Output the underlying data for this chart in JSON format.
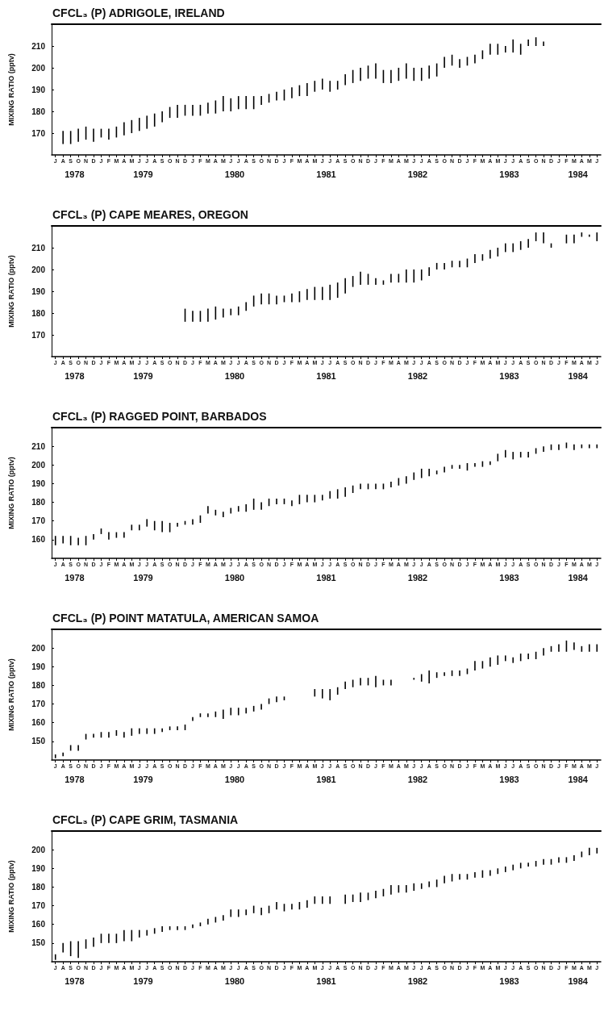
{
  "chart_data": [
    {
      "type": "bar",
      "title": "CFCL₃ (P) ADRIGOLE, IRELAND",
      "ylabel": "MIXING RATIO (pptv)",
      "color": "#000000",
      "categories": [
        "J",
        "A",
        "S",
        "O",
        "N",
        "D",
        "J",
        "F",
        "M",
        "A",
        "M",
        "J",
        "J",
        "A",
        "S",
        "O",
        "N",
        "D",
        "J",
        "F",
        "M",
        "A",
        "M",
        "J",
        "J",
        "A",
        "S",
        "O",
        "N",
        "D",
        "J",
        "F",
        "M",
        "A",
        "M",
        "J",
        "J",
        "A",
        "S",
        "O",
        "N",
        "D",
        "J",
        "F",
        "M",
        "A",
        "M",
        "J",
        "J",
        "A",
        "S",
        "O",
        "N",
        "D",
        "J",
        "F",
        "M",
        "A",
        "M",
        "J",
        "J",
        "A",
        "S",
        "O",
        "N",
        "D",
        "J",
        "F",
        "M",
        "A",
        "M",
        "J"
      ],
      "base": [
        null,
        165,
        165,
        166,
        167,
        166,
        168,
        167,
        168,
        169,
        170,
        171,
        172,
        173,
        175,
        177,
        177,
        178,
        178,
        178,
        179,
        179,
        180,
        180,
        181,
        181,
        181,
        183,
        184,
        185,
        185,
        186,
        187,
        187,
        189,
        190,
        189,
        190,
        192,
        193,
        194,
        195,
        195,
        193,
        193,
        194,
        195,
        194,
        194,
        195,
        196,
        200,
        201,
        200,
        201,
        202,
        204,
        206,
        206,
        207,
        207,
        206,
        210,
        210,
        210,
        null,
        null,
        null,
        null,
        null,
        null,
        null
      ],
      "values": [
        null,
        6,
        6,
        6,
        6,
        6,
        4,
        5,
        5,
        6,
        6,
        6,
        6,
        6,
        5,
        5,
        6,
        5,
        5,
        5,
        5,
        6,
        7,
        6,
        6,
        6,
        6,
        4,
        4,
        4,
        5,
        5,
        5,
        6,
        5,
        5,
        5,
        4,
        5,
        6,
        6,
        6,
        7,
        6,
        6,
        6,
        7,
        6,
        6,
        6,
        6,
        5,
        5,
        4,
        4,
        4,
        4,
        5,
        5,
        3,
        6,
        5,
        3,
        4,
        2,
        null,
        null,
        null,
        null,
        null,
        null,
        null
      ],
      "ylim": [
        160,
        220
      ],
      "yticks": [
        170,
        180,
        190,
        200,
        210
      ],
      "annotations": [
        "1978",
        "1979",
        "1980",
        "1981",
        "1982",
        "1983",
        "1984"
      ]
    },
    {
      "type": "bar",
      "title": "CFCL₃ (P) CAPE MEARES, OREGON",
      "ylabel": "MIXING RATIO (pptv)",
      "color": "#000000",
      "categories": [
        "J",
        "A",
        "S",
        "O",
        "N",
        "D",
        "J",
        "F",
        "M",
        "A",
        "M",
        "J",
        "J",
        "A",
        "S",
        "O",
        "N",
        "D",
        "J",
        "F",
        "M",
        "A",
        "M",
        "J",
        "J",
        "A",
        "S",
        "O",
        "N",
        "D",
        "J",
        "F",
        "M",
        "A",
        "M",
        "J",
        "J",
        "A",
        "S",
        "O",
        "N",
        "D",
        "J",
        "F",
        "M",
        "A",
        "M",
        "J",
        "J",
        "A",
        "S",
        "O",
        "N",
        "D",
        "J",
        "F",
        "M",
        "A",
        "M",
        "J",
        "J",
        "A",
        "S",
        "O",
        "N",
        "D",
        "J",
        "F",
        "M",
        "A",
        "M",
        "J"
      ],
      "base": [
        null,
        null,
        null,
        null,
        null,
        null,
        null,
        null,
        null,
        null,
        null,
        null,
        null,
        null,
        null,
        null,
        null,
        176,
        176,
        176,
        176,
        177,
        178,
        179,
        179,
        181,
        183,
        184,
        184,
        184,
        185,
        185,
        185,
        186,
        186,
        186,
        186,
        187,
        189,
        192,
        193,
        193,
        193,
        193,
        194,
        194,
        194,
        194,
        195,
        197,
        200,
        200,
        201,
        201,
        201,
        203,
        204,
        205,
        206,
        208,
        208,
        209,
        210,
        213,
        212,
        210,
        null,
        212,
        212,
        215,
        215,
        213
      ],
      "values": [
        null,
        null,
        null,
        null,
        null,
        null,
        null,
        null,
        null,
        null,
        null,
        null,
        null,
        null,
        null,
        null,
        null,
        6,
        5,
        5,
        6,
        6,
        4,
        3,
        4,
        4,
        5,
        5,
        5,
        4,
        3,
        4,
        5,
        5,
        6,
        6,
        7,
        7,
        7,
        5,
        6,
        5,
        3,
        2,
        4,
        4,
        6,
        6,
        5,
        4,
        3,
        3,
        3,
        3,
        4,
        4,
        3,
        4,
        4,
        4,
        4,
        4,
        4,
        4,
        5,
        2,
        null,
        4,
        4,
        2,
        1,
        4
      ],
      "ylim": [
        160,
        220
      ],
      "yticks": [
        170,
        180,
        190,
        200,
        210
      ],
      "annotations": [
        "1978",
        "1979",
        "1980",
        "1981",
        "1982",
        "1983",
        "1984"
      ]
    },
    {
      "type": "bar",
      "title": "CFCL₃ (P) RAGGED POINT, BARBADOS",
      "ylabel": "MIXING RATIO (pptv)",
      "color": "#000000",
      "categories": [
        "J",
        "A",
        "S",
        "O",
        "N",
        "D",
        "J",
        "F",
        "M",
        "A",
        "M",
        "J",
        "J",
        "A",
        "S",
        "O",
        "N",
        "D",
        "J",
        "F",
        "M",
        "A",
        "M",
        "J",
        "J",
        "A",
        "S",
        "O",
        "N",
        "D",
        "J",
        "F",
        "M",
        "A",
        "M",
        "J",
        "J",
        "A",
        "S",
        "O",
        "N",
        "D",
        "J",
        "F",
        "M",
        "A",
        "M",
        "J",
        "J",
        "A",
        "S",
        "O",
        "N",
        "D",
        "J",
        "F",
        "M",
        "A",
        "M",
        "J",
        "J",
        "A",
        "S",
        "O",
        "N",
        "D",
        "J",
        "F",
        "M",
        "A",
        "M",
        "J"
      ],
      "base": [
        157,
        158,
        157,
        157,
        157,
        160,
        163,
        160,
        161,
        161,
        165,
        165,
        167,
        165,
        164,
        164,
        167,
        168,
        168,
        169,
        174,
        173,
        172,
        174,
        175,
        175,
        176,
        176,
        178,
        179,
        179,
        178,
        179,
        180,
        180,
        181,
        182,
        182,
        183,
        185,
        187,
        187,
        187,
        187,
        188,
        189,
        190,
        192,
        193,
        194,
        195,
        196,
        198,
        198,
        197,
        199,
        199,
        200,
        202,
        204,
        203,
        204,
        204,
        206,
        207,
        208,
        208,
        209,
        208,
        209,
        209,
        209
      ],
      "values": [
        5,
        4,
        5,
        4,
        5,
        3,
        3,
        4,
        3,
        3,
        3,
        3,
        4,
        5,
        6,
        5,
        2,
        2,
        3,
        4,
        4,
        3,
        3,
        3,
        3,
        4,
        6,
        4,
        4,
        3,
        3,
        3,
        5,
        4,
        4,
        3,
        4,
        5,
        5,
        4,
        3,
        3,
        3,
        3,
        3,
        4,
        4,
        4,
        5,
        4,
        2,
        3,
        2,
        2,
        4,
        2,
        3,
        2,
        4,
        4,
        4,
        3,
        3,
        3,
        3,
        3,
        3,
        3,
        3,
        2,
        2,
        2
      ],
      "ylim": [
        150,
        220
      ],
      "yticks": [
        160,
        170,
        180,
        190,
        200,
        210
      ],
      "annotations": [
        "1978",
        "1979",
        "1980",
        "1981",
        "1982",
        "1983",
        "1984"
      ]
    },
    {
      "type": "bar",
      "title": "CFCL₃ (P) POINT MATATULA, AMERICAN SAMOA",
      "ylabel": "MIXING RATIO (pptv)",
      "color": "#000000",
      "categories": [
        "J",
        "A",
        "S",
        "O",
        "N",
        "D",
        "J",
        "F",
        "M",
        "A",
        "M",
        "J",
        "J",
        "A",
        "S",
        "O",
        "N",
        "D",
        "J",
        "F",
        "M",
        "A",
        "M",
        "J",
        "J",
        "A",
        "S",
        "O",
        "N",
        "D",
        "J",
        "F",
        "M",
        "A",
        "M",
        "J",
        "J",
        "A",
        "S",
        "O",
        "N",
        "D",
        "J",
        "F",
        "M",
        "A",
        "M",
        "J",
        "J",
        "A",
        "S",
        "O",
        "N",
        "D",
        "J",
        "F",
        "M",
        "A",
        "M",
        "J",
        "J",
        "A",
        "S",
        "O",
        "N",
        "D",
        "J",
        "F",
        "M",
        "A",
        "M",
        "J"
      ],
      "base": [
        141,
        142,
        145,
        145,
        151,
        152,
        152,
        152,
        153,
        152,
        153,
        154,
        154,
        154,
        155,
        156,
        156,
        156,
        161,
        163,
        163,
        163,
        162,
        164,
        164,
        165,
        166,
        167,
        170,
        171,
        172,
        null,
        null,
        null,
        174,
        173,
        172,
        175,
        178,
        179,
        180,
        180,
        179,
        180,
        180,
        null,
        null,
        183,
        182,
        181,
        184,
        185,
        185,
        185,
        186,
        188,
        189,
        190,
        191,
        193,
        192,
        193,
        194,
        194,
        196,
        198,
        198,
        198,
        199,
        198,
        198,
        198
      ],
      "values": [
        2,
        2,
        3,
        3,
        3,
        2,
        3,
        3,
        3,
        3,
        4,
        3,
        3,
        3,
        2,
        2,
        2,
        3,
        2,
        2,
        2,
        3,
        5,
        4,
        4,
        3,
        3,
        3,
        3,
        3,
        2,
        null,
        null,
        null,
        4,
        5,
        6,
        4,
        4,
        4,
        4,
        4,
        6,
        3,
        3,
        null,
        null,
        1,
        4,
        7,
        3,
        2,
        3,
        3,
        3,
        5,
        4,
        5,
        5,
        3,
        3,
        4,
        3,
        4,
        4,
        3,
        4,
        6,
        4,
        3,
        4,
        4
      ],
      "ylim": [
        140,
        210
      ],
      "yticks": [
        150,
        160,
        170,
        180,
        190,
        200
      ],
      "annotations": [
        "1978",
        "1979",
        "1980",
        "1981",
        "1982",
        "1983",
        "1984"
      ]
    },
    {
      "type": "bar",
      "title": "CFCL₃ (P) CAPE GRIM, TASMANIA",
      "ylabel": "MIXING RATIO (pptv)",
      "color": "#000000",
      "categories": [
        "J",
        "A",
        "S",
        "O",
        "N",
        "D",
        "J",
        "F",
        "M",
        "A",
        "M",
        "J",
        "J",
        "A",
        "S",
        "O",
        "N",
        "D",
        "J",
        "F",
        "M",
        "A",
        "M",
        "J",
        "J",
        "A",
        "S",
        "O",
        "N",
        "D",
        "J",
        "F",
        "M",
        "A",
        "M",
        "J",
        "J",
        "A",
        "S",
        "O",
        "N",
        "D",
        "J",
        "F",
        "M",
        "A",
        "M",
        "J",
        "J",
        "A",
        "S",
        "O",
        "N",
        "D",
        "J",
        "F",
        "M",
        "A",
        "M",
        "J",
        "J",
        "A",
        "S",
        "O",
        "N",
        "D",
        "J",
        "F",
        "M",
        "A",
        "M",
        "J"
      ],
      "base": [
        141,
        145,
        143,
        142,
        147,
        148,
        150,
        150,
        150,
        151,
        151,
        153,
        154,
        155,
        156,
        157,
        157,
        157,
        158,
        159,
        160,
        161,
        162,
        164,
        164,
        165,
        166,
        165,
        166,
        168,
        167,
        168,
        168,
        169,
        171,
        171,
        171,
        null,
        171,
        172,
        172,
        173,
        174,
        175,
        176,
        177,
        177,
        178,
        179,
        180,
        180,
        182,
        183,
        184,
        184,
        185,
        185,
        186,
        187,
        188,
        189,
        190,
        191,
        191,
        192,
        192,
        193,
        193,
        194,
        196,
        197,
        198
      ],
      "values": [
        3,
        5,
        8,
        9,
        5,
        5,
        5,
        5,
        5,
        6,
        6,
        4,
        3,
        3,
        3,
        2,
        2,
        2,
        2,
        2,
        3,
        3,
        3,
        4,
        4,
        3,
        4,
        4,
        4,
        4,
        4,
        3,
        4,
        4,
        4,
        4,
        4,
        null,
        5,
        4,
        5,
        4,
        4,
        4,
        5,
        4,
        4,
        4,
        3,
        3,
        4,
        4,
        4,
        3,
        3,
        3,
        4,
        3,
        3,
        3,
        3,
        3,
        2,
        3,
        3,
        3,
        3,
        3,
        3,
        3,
        4,
        3
      ],
      "ylim": [
        140,
        210
      ],
      "yticks": [
        150,
        160,
        170,
        180,
        190,
        200
      ],
      "annotations": [
        "1978",
        "1979",
        "1980",
        "1981",
        "1982",
        "1983",
        "1984"
      ]
    }
  ]
}
